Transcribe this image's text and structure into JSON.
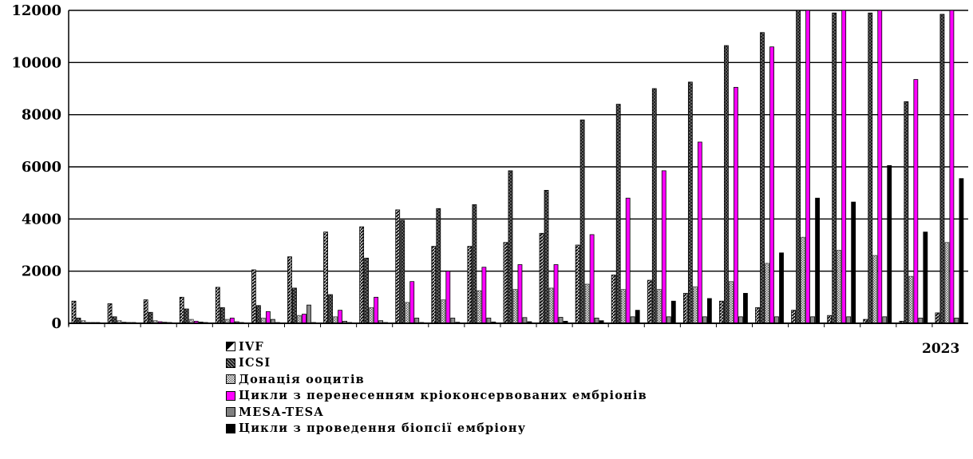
{
  "chart_data": {
    "type": "bar",
    "x_last_label": "2023",
    "ylim": [
      0,
      12000
    ],
    "yticks": [
      "0",
      "2000",
      "4000",
      "6000",
      "8000",
      "10000",
      "12000"
    ],
    "grid": "horizontal",
    "legend_placement": "bottom-left",
    "series": [
      {
        "name": "IVF",
        "color": "#000000",
        "values": [
          850,
          750,
          900,
          1000,
          1380,
          2050,
          2550,
          3500,
          3700,
          4350,
          2950,
          2950,
          3100,
          3450,
          3000,
          1850,
          1650,
          1150,
          850,
          600,
          500,
          300,
          150,
          80,
          400
        ]
      },
      {
        "name": "ICSI",
        "color": "#555555",
        "values": [
          200,
          250,
          420,
          550,
          600,
          680,
          1350,
          1100,
          2500,
          3950,
          4400,
          4550,
          5850,
          5100,
          7800,
          8400,
          9000,
          9250,
          10650,
          11150,
          12000,
          11900,
          11900,
          8500,
          11850
        ]
      },
      {
        "name": "Донація ооцитів",
        "color": "#d0d0d0",
        "values": [
          100,
          100,
          100,
          150,
          150,
          200,
          300,
          250,
          600,
          800,
          900,
          1250,
          1300,
          1350,
          1500,
          1300,
          1300,
          1400,
          1600,
          2300,
          3300,
          2800,
          2600,
          1800,
          3100
        ]
      },
      {
        "name": "Цикли з перенесенням кріоконсервованих ембріонів",
        "color": "#ff00ff",
        "values": [
          30,
          40,
          60,
          80,
          200,
          450,
          350,
          500,
          1000,
          1600,
          2000,
          2150,
          2250,
          2250,
          3400,
          4800,
          5850,
          6950,
          9050,
          10600,
          12000,
          12000,
          12000,
          9350,
          12000
        ]
      },
      {
        "name": "MESA-TESA",
        "color": "#808080",
        "values": [
          20,
          30,
          40,
          50,
          60,
          150,
          700,
          80,
          100,
          200,
          200,
          200,
          220,
          230,
          200,
          250,
          250,
          250,
          250,
          250,
          250,
          250,
          250,
          200,
          200
        ]
      },
      {
        "name": "Цикли з проведення біопсії ембріону",
        "color": "#000000",
        "values": [
          10,
          10,
          10,
          10,
          10,
          10,
          10,
          10,
          20,
          30,
          40,
          50,
          60,
          80,
          100,
          500,
          850,
          950,
          1150,
          2700,
          4800,
          4650,
          6050,
          3500,
          5550
        ]
      }
    ]
  }
}
